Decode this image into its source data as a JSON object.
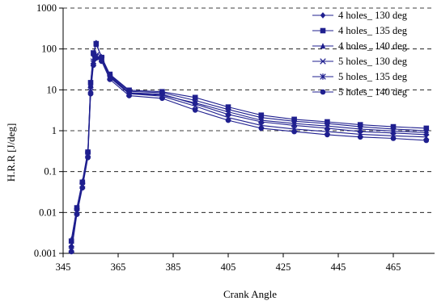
{
  "chart_data": {
    "type": "line",
    "xlabel": "Crank Angle",
    "ylabel": "H.R.R [J/deg]",
    "xlim": [
      345,
      480
    ],
    "ylim": [
      0.001,
      1000
    ],
    "y_scale": "log",
    "grid": "horizontal-dashed",
    "legend_position": "top-right",
    "x_ticks": [
      345,
      365,
      385,
      405,
      425,
      445,
      465
    ],
    "y_ticks": [
      0.001,
      0.01,
      0.1,
      1,
      10,
      100,
      1000
    ],
    "y_tick_labels": [
      "0.001",
      "0.01",
      "0.1",
      "1",
      "10",
      "100",
      "1000"
    ],
    "line_color": "#1f1f8f",
    "series": [
      {
        "name": "4 holes_ 130 deg",
        "marker": "diamond",
        "points": [
          [
            348,
            0.0015
          ],
          [
            350,
            0.012
          ],
          [
            352,
            0.05
          ],
          [
            354,
            0.28
          ],
          [
            355,
            12
          ],
          [
            356,
            70
          ],
          [
            357,
            140
          ],
          [
            359,
            60
          ],
          [
            362,
            22
          ],
          [
            369,
            8.5
          ],
          [
            381,
            7.8
          ],
          [
            393,
            4.5
          ],
          [
            405,
            2.5
          ],
          [
            417,
            1.65
          ],
          [
            429,
            1.35
          ],
          [
            441,
            1.15
          ],
          [
            453,
            0.95
          ],
          [
            465,
            0.88
          ],
          [
            477,
            0.8
          ]
        ]
      },
      {
        "name": "4 holes_ 135 deg",
        "marker": "square",
        "points": [
          [
            348,
            0.002
          ],
          [
            350,
            0.013
          ],
          [
            352,
            0.055
          ],
          [
            354,
            0.3
          ],
          [
            355,
            15
          ],
          [
            356,
            80
          ],
          [
            357,
            135
          ],
          [
            359,
            62
          ],
          [
            362,
            24
          ],
          [
            369,
            9.8
          ],
          [
            381,
            9.0
          ],
          [
            393,
            6.5
          ],
          [
            405,
            3.8
          ],
          [
            417,
            2.4
          ],
          [
            429,
            1.9
          ],
          [
            441,
            1.65
          ],
          [
            453,
            1.4
          ],
          [
            465,
            1.25
          ],
          [
            477,
            1.15
          ]
        ]
      },
      {
        "name": "4 holes_ 140 deg",
        "marker": "triangle",
        "points": [
          [
            348,
            0.0022
          ],
          [
            350,
            0.013
          ],
          [
            352,
            0.058
          ],
          [
            354,
            0.32
          ],
          [
            355,
            14
          ],
          [
            356,
            78
          ],
          [
            357,
            130
          ],
          [
            359,
            64
          ],
          [
            362,
            23
          ],
          [
            369,
            9.2
          ],
          [
            381,
            8.5
          ],
          [
            393,
            5.5
          ],
          [
            405,
            3.3
          ],
          [
            417,
            2.1
          ],
          [
            429,
            1.7
          ],
          [
            441,
            1.5
          ],
          [
            453,
            1.25
          ],
          [
            465,
            1.1
          ],
          [
            477,
            1.0
          ]
        ]
      },
      {
        "name": "5 holes_ 130 deg",
        "marker": "x",
        "points": [
          [
            348,
            0.0012
          ],
          [
            350,
            0.01
          ],
          [
            352,
            0.045
          ],
          [
            354,
            0.25
          ],
          [
            355,
            9
          ],
          [
            356,
            45
          ],
          [
            357,
            65
          ],
          [
            359,
            55
          ],
          [
            362,
            20
          ],
          [
            369,
            8.0
          ],
          [
            381,
            7.0
          ],
          [
            393,
            4.0
          ],
          [
            405,
            2.1
          ],
          [
            417,
            1.35
          ],
          [
            429,
            1.1
          ],
          [
            441,
            0.95
          ],
          [
            453,
            0.82
          ],
          [
            465,
            0.75
          ],
          [
            477,
            0.7
          ]
        ]
      },
      {
        "name": "5 holes_ 135 deg",
        "marker": "star",
        "points": [
          [
            348,
            0.0013
          ],
          [
            350,
            0.011
          ],
          [
            352,
            0.048
          ],
          [
            354,
            0.27
          ],
          [
            355,
            10
          ],
          [
            356,
            50
          ],
          [
            357,
            70
          ],
          [
            359,
            58
          ],
          [
            362,
            21
          ],
          [
            369,
            8.2
          ],
          [
            381,
            7.4
          ],
          [
            393,
            4.8
          ],
          [
            405,
            2.9
          ],
          [
            417,
            1.8
          ],
          [
            429,
            1.5
          ],
          [
            441,
            1.3
          ],
          [
            453,
            1.1
          ],
          [
            465,
            0.98
          ],
          [
            477,
            0.9
          ]
        ]
      },
      {
        "name": "5 holes_ 140 deg",
        "marker": "circle",
        "points": [
          [
            348,
            0.0011
          ],
          [
            350,
            0.009
          ],
          [
            352,
            0.04
          ],
          [
            354,
            0.22
          ],
          [
            355,
            8
          ],
          [
            356,
            40
          ],
          [
            357,
            60
          ],
          [
            359,
            50
          ],
          [
            362,
            18
          ],
          [
            369,
            7.2
          ],
          [
            381,
            6.2
          ],
          [
            393,
            3.2
          ],
          [
            405,
            1.8
          ],
          [
            417,
            1.15
          ],
          [
            429,
            0.95
          ],
          [
            441,
            0.8
          ],
          [
            453,
            0.7
          ],
          [
            465,
            0.65
          ],
          [
            477,
            0.58
          ]
        ]
      }
    ]
  }
}
